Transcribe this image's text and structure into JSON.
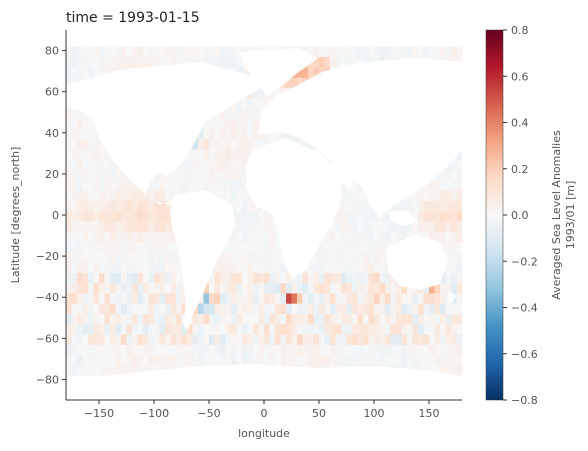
{
  "chart_data": {
    "type": "heatmap",
    "title": "time = 1993-01-15",
    "xlabel": "longitude",
    "ylabel": "Latitude [degrees_north]",
    "xlim": [
      -180,
      180
    ],
    "ylim": [
      -90,
      90
    ],
    "x_ticks": [
      -150,
      -100,
      -50,
      0,
      50,
      100,
      150
    ],
    "y_ticks": [
      -80,
      -60,
      -40,
      -20,
      0,
      20,
      40,
      60,
      80
    ],
    "x_tick_labels": [
      "−150",
      "−100",
      "−50",
      "0",
      "50",
      "100",
      "150"
    ],
    "y_tick_labels": [
      "−80",
      "−60",
      "−40",
      "−20",
      "0",
      "20",
      "40",
      "60",
      "80"
    ],
    "colorbar": {
      "label_line1": "Averaged Sea Level Anomalies",
      "label_line2": "1993/01 [m]",
      "colormap": "RdBu_r",
      "vmin": -0.8,
      "vmax": 0.8,
      "ticks": [
        0.8,
        0.6,
        0.4,
        0.2,
        0.0,
        -0.2,
        -0.4,
        -0.6,
        -0.8
      ],
      "tick_labels": [
        "0.8",
        "0.6",
        "0.4",
        "0.2",
        "0.0",
        "−0.2",
        "−0.4",
        "−0.6",
        "−0.8"
      ],
      "colors": [
        "#053061",
        "#2166ac",
        "#4393c3",
        "#92c5de",
        "#d1e5f0",
        "#f7f7f7",
        "#fddbc7",
        "#f4a582",
        "#d6604d",
        "#b2182b",
        "#67001f"
      ]
    },
    "ocean_mask": "land masses left blank (white)"
  }
}
